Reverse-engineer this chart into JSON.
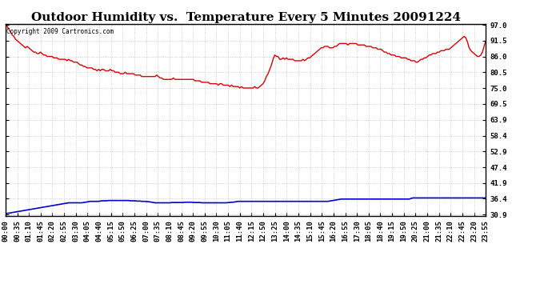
{
  "title": "Outdoor Humidity vs.  Temperature Every 5 Minutes 20091224",
  "copyright_text": "Copyright 2009 Cartronics.com",
  "yticks": [
    30.9,
    36.4,
    41.9,
    47.4,
    52.9,
    58.4,
    63.9,
    69.5,
    75.0,
    80.5,
    86.0,
    91.5,
    97.0
  ],
  "xtick_labels": [
    "00:00",
    "00:35",
    "01:10",
    "01:45",
    "02:20",
    "02:55",
    "03:30",
    "04:05",
    "04:40",
    "05:15",
    "05:50",
    "06:25",
    "07:00",
    "07:35",
    "08:10",
    "08:45",
    "09:20",
    "09:55",
    "10:30",
    "11:05",
    "11:40",
    "12:15",
    "12:50",
    "13:25",
    "14:00",
    "14:35",
    "15:10",
    "15:45",
    "16:20",
    "16:55",
    "17:30",
    "18:05",
    "18:40",
    "19:15",
    "19:50",
    "20:25",
    "21:00",
    "21:35",
    "22:10",
    "22:45",
    "23:20",
    "23:55"
  ],
  "humidity_color": "#dd0000",
  "temperature_color": "#0000cc",
  "background_color": "#ffffff",
  "grid_color": "#c0c0c0",
  "title_fontsize": 11,
  "tick_fontsize": 6.5,
  "copyright_fontsize": 5.5,
  "humidity_data": [
    97.0,
    96.5,
    95.5,
    94.5,
    93.5,
    93.0,
    92.0,
    91.5,
    91.0,
    90.5,
    90.0,
    89.5,
    89.0,
    89.5,
    89.0,
    88.5,
    88.0,
    87.5,
    87.5,
    87.0,
    87.0,
    87.5,
    87.0,
    86.5,
    86.5,
    86.0,
    86.0,
    86.0,
    86.0,
    85.5,
    85.5,
    85.5,
    85.0,
    85.0,
    85.0,
    85.0,
    85.0,
    84.5,
    85.0,
    84.5,
    84.5,
    84.0,
    84.0,
    84.0,
    83.5,
    83.0,
    83.0,
    82.5,
    82.5,
    82.0,
    82.0,
    82.0,
    82.0,
    81.5,
    81.5,
    81.0,
    81.5,
    81.0,
    81.5,
    81.5,
    81.0,
    81.0,
    81.0,
    81.5,
    81.0,
    81.0,
    80.5,
    80.5,
    80.5,
    80.0,
    80.0,
    80.0,
    80.5,
    80.0,
    80.0,
    80.0,
    80.0,
    80.0,
    79.5,
    79.5,
    79.5,
    79.5,
    79.0,
    79.0,
    79.0,
    79.0,
    79.0,
    79.0,
    79.0,
    79.0,
    79.0,
    79.5,
    79.0,
    78.5,
    78.5,
    78.0,
    78.0,
    78.0,
    78.0,
    78.0,
    78.0,
    78.5,
    78.0,
    78.0,
    78.0,
    78.0,
    78.0,
    78.0,
    78.0,
    78.0,
    78.0,
    78.0,
    78.0,
    78.0,
    77.5,
    77.5,
    77.5,
    77.5,
    77.0,
    77.0,
    77.0,
    77.0,
    77.0,
    76.5,
    76.5,
    76.5,
    76.5,
    76.5,
    76.0,
    76.5,
    76.5,
    76.0,
    76.0,
    76.0,
    76.0,
    75.5,
    76.0,
    75.5,
    75.5,
    75.5,
    75.5,
    75.0,
    75.5,
    75.0,
    75.0,
    75.0,
    75.0,
    75.0,
    75.0,
    75.0,
    75.5,
    75.0,
    75.0,
    75.5,
    76.0,
    76.5,
    77.5,
    79.0,
    80.0,
    81.5,
    83.0,
    85.0,
    86.5,
    86.0,
    86.0,
    85.0,
    85.0,
    85.5,
    85.0,
    85.5,
    85.0,
    85.0,
    85.0,
    85.0,
    84.5,
    84.5,
    84.5,
    84.5,
    84.5,
    85.0,
    84.5,
    85.0,
    85.5,
    85.5,
    86.0,
    86.5,
    87.0,
    87.5,
    88.0,
    88.5,
    89.0,
    89.0,
    89.5,
    89.5,
    89.5,
    89.0,
    89.0,
    89.0,
    89.5,
    89.5,
    90.0,
    90.5,
    90.5,
    90.5,
    90.5,
    90.5,
    90.0,
    90.5,
    90.5,
    90.5,
    90.5,
    90.5,
    90.0,
    90.0,
    90.0,
    90.0,
    90.0,
    89.5,
    89.5,
    89.5,
    89.5,
    89.0,
    89.0,
    89.0,
    88.5,
    88.5,
    88.5,
    88.0,
    87.5,
    87.5,
    87.0,
    87.0,
    86.5,
    86.5,
    86.5,
    86.0,
    86.0,
    86.0,
    85.5,
    85.5,
    85.5,
    85.5,
    85.0,
    85.0,
    84.5,
    84.5,
    84.5,
    84.0,
    84.0,
    84.5,
    85.0,
    85.0,
    85.5,
    85.5,
    86.0,
    86.5,
    86.5,
    87.0,
    87.0,
    87.0,
    87.5,
    87.5,
    88.0,
    88.0,
    88.0,
    88.5,
    88.5,
    88.5,
    89.0,
    89.5,
    90.0,
    90.5,
    91.0,
    91.5,
    92.0,
    92.5,
    93.0,
    92.5,
    91.0,
    89.0,
    88.0,
    87.5,
    87.0,
    86.5,
    86.0,
    86.0,
    86.5,
    87.5,
    89.5,
    91.5
  ],
  "temperature_data": [
    31.2,
    31.3,
    31.4,
    31.5,
    31.6,
    31.7,
    31.8,
    31.9,
    32.0,
    32.1,
    32.2,
    32.3,
    32.4,
    32.5,
    32.6,
    32.7,
    32.8,
    32.9,
    33.0,
    33.1,
    33.2,
    33.3,
    33.4,
    33.5,
    33.6,
    33.7,
    33.8,
    33.9,
    34.0,
    34.1,
    34.2,
    34.3,
    34.4,
    34.5,
    34.6,
    34.7,
    34.8,
    34.9,
    35.0,
    35.0,
    35.0,
    35.0,
    35.0,
    35.0,
    35.0,
    35.0,
    35.0,
    35.1,
    35.2,
    35.3,
    35.4,
    35.5,
    35.5,
    35.5,
    35.5,
    35.5,
    35.5,
    35.6,
    35.7,
    35.7,
    35.7,
    35.7,
    35.8,
    35.8,
    35.8,
    35.8,
    35.8,
    35.8,
    35.8,
    35.8,
    35.8,
    35.8,
    35.8,
    35.8,
    35.8,
    35.7,
    35.7,
    35.7,
    35.7,
    35.6,
    35.6,
    35.6,
    35.5,
    35.5,
    35.5,
    35.4,
    35.4,
    35.3,
    35.2,
    35.1,
    35.0,
    35.0,
    35.0,
    35.0,
    35.0,
    35.0,
    35.0,
    35.0,
    35.0,
    35.0,
    35.1,
    35.1,
    35.1,
    35.1,
    35.1,
    35.1,
    35.1,
    35.1,
    35.2,
    35.2,
    35.2,
    35.2,
    35.2,
    35.1,
    35.1,
    35.1,
    35.1,
    35.1,
    35.0,
    35.0,
    35.0,
    35.0,
    35.0,
    35.0,
    35.0,
    35.0,
    35.0,
    35.0,
    35.0,
    35.0,
    35.0,
    35.0,
    35.0,
    35.0,
    35.1,
    35.1,
    35.2,
    35.2,
    35.3,
    35.4,
    35.5,
    35.5,
    35.5,
    35.5,
    35.5,
    35.5,
    35.5,
    35.5,
    35.5,
    35.5,
    35.5,
    35.5,
    35.5,
    35.5,
    35.5,
    35.5,
    35.5,
    35.5,
    35.5,
    35.5,
    35.5,
    35.5,
    35.5,
    35.5,
    35.5,
    35.5,
    35.5,
    35.5,
    35.5,
    35.5,
    35.5,
    35.5,
    35.5,
    35.5,
    35.5,
    35.5,
    35.5,
    35.5,
    35.5,
    35.5,
    35.5,
    35.5,
    35.5,
    35.5,
    35.5,
    35.5,
    35.5,
    35.5,
    35.5,
    35.5,
    35.5,
    35.5,
    35.5,
    35.5,
    35.5,
    35.6,
    35.7,
    35.8,
    35.9,
    36.0,
    36.1,
    36.2,
    36.3,
    36.3,
    36.3,
    36.3,
    36.3,
    36.3,
    36.3,
    36.3,
    36.3,
    36.3,
    36.3,
    36.3,
    36.3,
    36.3,
    36.3,
    36.3,
    36.3,
    36.3,
    36.3,
    36.3,
    36.3,
    36.3,
    36.3,
    36.3,
    36.3,
    36.3,
    36.3,
    36.3,
    36.3,
    36.3,
    36.3,
    36.3,
    36.3,
    36.3,
    36.3,
    36.3,
    36.3,
    36.3,
    36.3,
    36.3,
    36.3,
    36.3,
    36.5,
    36.7,
    36.7,
    36.7,
    36.7,
    36.7,
    36.7,
    36.7,
    36.7,
    36.7,
    36.7,
    36.7,
    36.7,
    36.7,
    36.7,
    36.7,
    36.7,
    36.7,
    36.7,
    36.7,
    36.7,
    36.7,
    36.7,
    36.7,
    36.7,
    36.7,
    36.7,
    36.7,
    36.7,
    36.7,
    36.7,
    36.7,
    36.7,
    36.7,
    36.7,
    36.7,
    36.7,
    36.7,
    36.7,
    36.7,
    36.7,
    36.7,
    36.7,
    36.7,
    36.7,
    36.7
  ]
}
